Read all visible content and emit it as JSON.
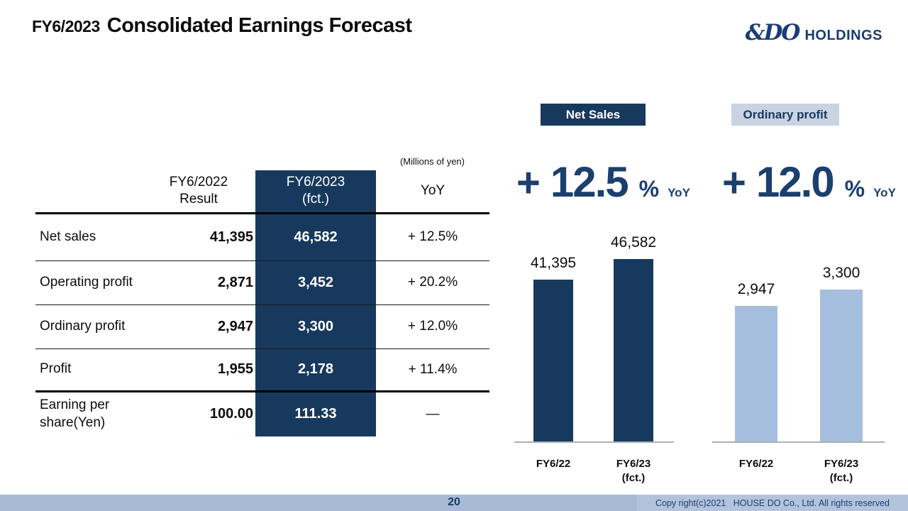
{
  "header": {
    "title_prefix": "FY6/2023",
    "title": "Consolidated Earnings Forecast",
    "logo_mark": "&DO",
    "logo_text": "HOLDINGS"
  },
  "table": {
    "units_note": "(Millions of yen)",
    "header": {
      "prev_line1": "FY6/2022",
      "prev_line2": "Result",
      "fct_line1": "FY6/2023",
      "fct_line2": "(fct.)",
      "yoy": "YoY"
    },
    "rows": [
      {
        "label": "Net sales",
        "prev": "41,395",
        "fct": "46,582",
        "yoy": "+ 12.5%"
      },
      {
        "label": "Operating profit",
        "prev": "2,871",
        "fct": "3,452",
        "yoy": "+ 20.2%"
      },
      {
        "label": "Ordinary profit",
        "prev": "2,947",
        "fct": "3,300",
        "yoy": "+ 12.0%"
      },
      {
        "label": "Profit",
        "prev": "1,955",
        "fct": "2,178",
        "yoy": "+ 11.4%"
      },
      {
        "label": "Earning per share(Yen)",
        "prev": "100.00",
        "fct": "111.33",
        "yoy": "—"
      }
    ]
  },
  "chart_data": [
    {
      "type": "bar",
      "title": "Net Sales",
      "categories": [
        "FY6/22",
        "FY6/23 (fct.)"
      ],
      "values": [
        41395,
        46582
      ],
      "data_labels": [
        "41,395",
        "46,582"
      ],
      "x_labels": [
        [
          "FY6/22",
          ""
        ],
        [
          "FY6/23",
          "(fct.)"
        ]
      ],
      "growth_sign": "+",
      "growth_value": "12.5",
      "growth_unit": "%",
      "growth_suffix": "YoY",
      "bar_color": "#17395E",
      "unit_note": "Millions of yen",
      "legend_position": "none",
      "grid": false
    },
    {
      "type": "bar",
      "title": "Ordinary profit",
      "categories": [
        "FY6/22",
        "FY6/23 (fct.)"
      ],
      "values": [
        2947,
        3300
      ],
      "data_labels": [
        "2,947",
        "3,300"
      ],
      "x_labels": [
        [
          "FY6/22",
          ""
        ],
        [
          "FY6/23",
          "(fct.)"
        ]
      ],
      "growth_sign": "+",
      "growth_value": "12.0",
      "growth_unit": "%",
      "growth_suffix": "YoY",
      "bar_color": "#A6BEDE",
      "unit_note": "Millions of yen",
      "legend_position": "none",
      "grid": false
    }
  ],
  "footer": {
    "page_number": "20",
    "copyright": "Copy right(c)2021   HOUSE DO Co., Ltd. All rights reserved"
  },
  "colors": {
    "navy": "#17395E",
    "light_bar": "#A6BEDE",
    "badge_light_bg": "#C9D3E4",
    "text_navy": "#1B3F6E",
    "footer_bar": "#A8BAD6",
    "footer_copyright_bg": "#B4C3DC",
    "axis_gray": "#AFAFAF",
    "logo_navy": "#1B3C74"
  }
}
